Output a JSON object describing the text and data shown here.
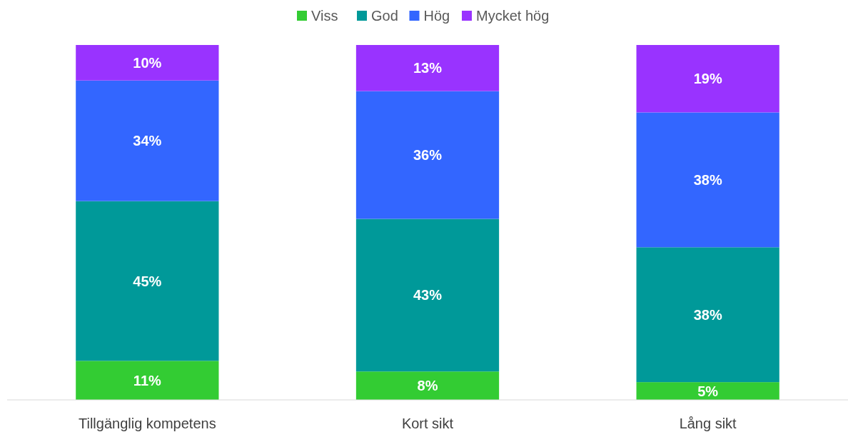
{
  "chart_data": {
    "type": "bar",
    "stacked": true,
    "categories": [
      "Tillgänglig kompetens",
      "Kort sikt",
      "Lång sikt"
    ],
    "series": [
      {
        "name": "Viss",
        "color": "#33cc33",
        "values": [
          11,
          8,
          5
        ],
        "value_labels": [
          "11%",
          "8%",
          "5%"
        ]
      },
      {
        "name": "God",
        "color": "#009999",
        "values": [
          45,
          43,
          38
        ],
        "value_labels": [
          "45%",
          "43%",
          "38%"
        ]
      },
      {
        "name": "Hög",
        "color": "#3366ff",
        "values": [
          34,
          36,
          38
        ],
        "value_labels": [
          "34%",
          "36%",
          "38%"
        ]
      },
      {
        "name": "Mycket hög",
        "color": "#9933ff",
        "values": [
          10,
          13,
          19
        ],
        "value_labels": [
          "10%",
          "13%",
          "19%"
        ]
      }
    ],
    "tick_labels": "x",
    "legend": "top"
  }
}
